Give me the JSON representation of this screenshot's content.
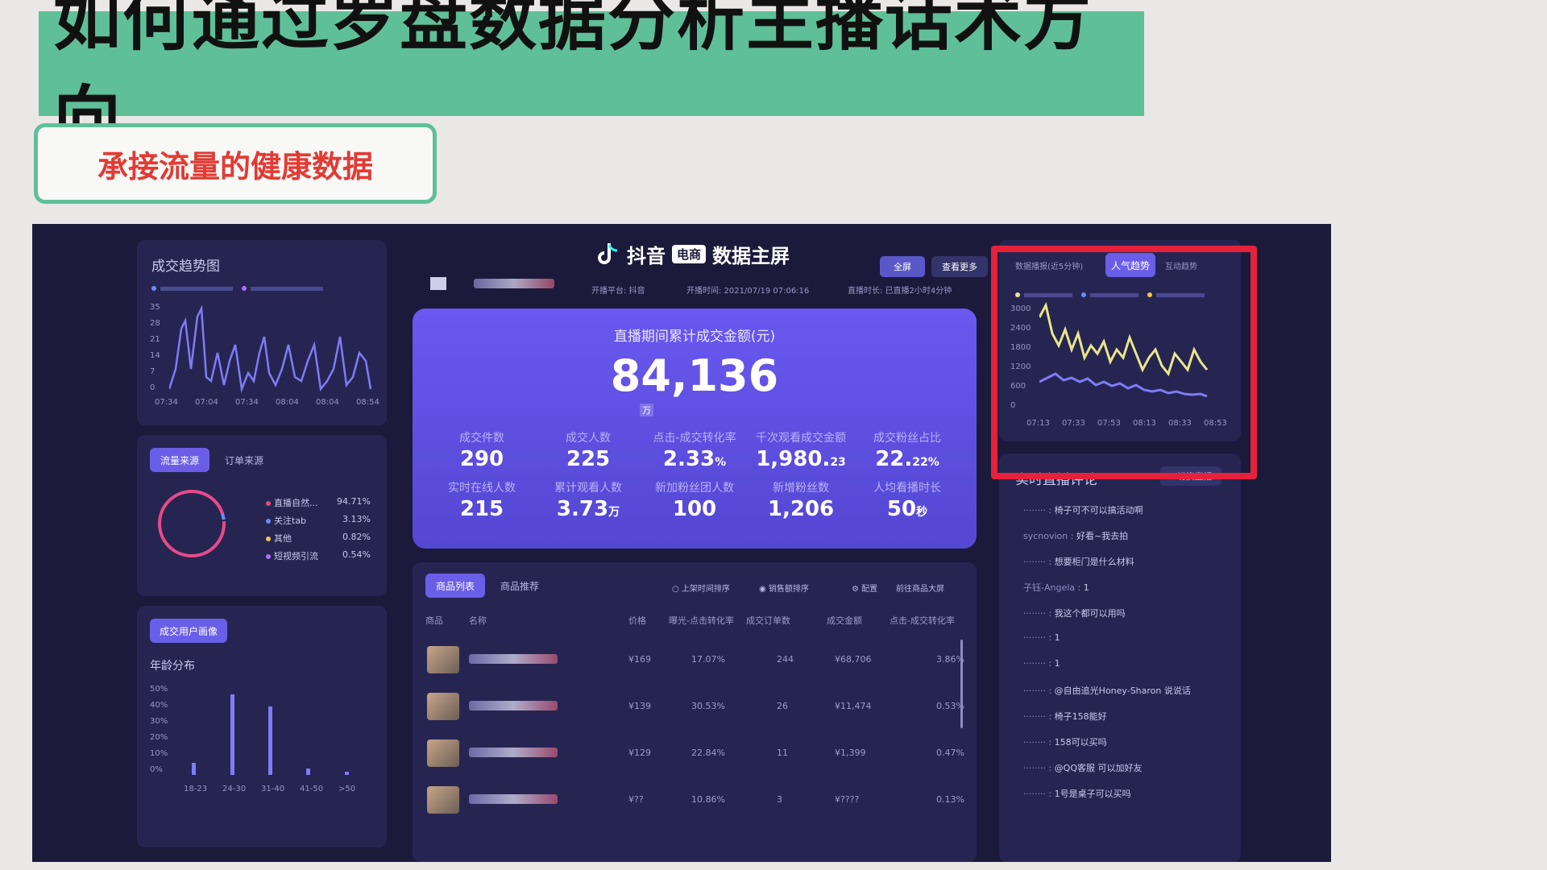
{
  "slide": {
    "title": "如何通过罗盘数据分析主播话术方向",
    "subtitle": "承接流量的健康数据"
  },
  "colors": {
    "accent_green": "#5fbf99",
    "subtitle_red": "#e23b34",
    "highlight_red": "#e8213b",
    "kpi_purple": "#6a58f0"
  },
  "dashboard": {
    "brand": "抖音",
    "badge": "电商",
    "title": "数据主屏",
    "fullscreen_btn": "全屏",
    "more_btn": "查看更多",
    "platform": "开播平台: 抖音",
    "start_time": "开播时间: 2021/07/19 07:06:16",
    "duration": "直播时长: 已直播2小时4分钟"
  },
  "trend": {
    "title": "成交趋势图",
    "y_ticks": [
      "35",
      "28",
      "21",
      "14",
      "7",
      "0"
    ],
    "x_ticks": [
      "07:34",
      "07:04",
      "07:34",
      "08:04",
      "08:04",
      "08:54"
    ]
  },
  "traffic": {
    "tabs": [
      "流量来源",
      "订单来源"
    ],
    "items": [
      {
        "name": "直播自然...",
        "value": "94.71%"
      },
      {
        "name": "关注tab",
        "value": "3.13%"
      },
      {
        "name": "其他",
        "value": "0.82%"
      },
      {
        "name": "短视频引流",
        "value": "0.54%"
      }
    ]
  },
  "age": {
    "tabs": [
      "成交用户画像"
    ],
    "title": "年龄分布",
    "y_ticks": [
      "50%",
      "40%",
      "30%",
      "20%",
      "10%",
      "0%"
    ],
    "x_ticks": [
      "18-23",
      "24-30",
      "31-40",
      "41-50",
      ">50"
    ]
  },
  "kpi": {
    "head": "直播期间累计成交金额(元)",
    "total": "84,136",
    "unit": "万",
    "items": [
      {
        "label": "成交件数",
        "value": "290",
        "suffix": ""
      },
      {
        "label": "成交人数",
        "value": "225",
        "suffix": ""
      },
      {
        "label": "点击-成交转化率",
        "value": "2.33",
        "suffix": "%"
      },
      {
        "label": "千次观看成交金额",
        "value": "1,980.",
        "suffix": "23"
      },
      {
        "label": "成交粉丝占比",
        "value": "22.",
        "suffix": "22%"
      },
      {
        "label": "实时在线人数",
        "value": "215",
        "suffix": ""
      },
      {
        "label": "累计观看人数",
        "value": "3.73",
        "suffix": "万"
      },
      {
        "label": "新加粉丝团人数",
        "value": "100",
        "suffix": ""
      },
      {
        "label": "新增粉丝数",
        "value": "1,206",
        "suffix": ""
      },
      {
        "label": "人均看播时长",
        "value": "50",
        "suffix": "秒"
      }
    ]
  },
  "products": {
    "tabs": [
      "商品列表",
      "商品推荐"
    ],
    "sort_options": [
      "上架时间排序",
      "销售额排序"
    ],
    "buttons": [
      "配置",
      "前往商品大屏"
    ],
    "columns": [
      "商品",
      "名称",
      "价格",
      "曝光-点击转化率",
      "成交订单数",
      "成交金额",
      "点击-成交转化率"
    ],
    "rows": [
      {
        "name": "",
        "price": "¥169",
        "ctr": "17.07%",
        "orders": "244",
        "amount": "¥68,706",
        "cvr": "3.86%"
      },
      {
        "name": "",
        "price": "¥139",
        "ctr": "30.53%",
        "orders": "26",
        "amount": "¥11,474",
        "cvr": "0.53%"
      },
      {
        "name": "",
        "price": "¥129",
        "ctr": "22.84%",
        "orders": "11",
        "amount": "¥1,399",
        "cvr": "0.47%"
      },
      {
        "name": "",
        "price": "¥??",
        "ctr": "10.86%",
        "orders": "3",
        "amount": "¥????",
        "cvr": "0.13%"
      }
    ]
  },
  "popularity": {
    "tabs": [
      "数据播报(近5分钟)",
      "人气趋势",
      "互动趋势"
    ],
    "y_ticks": [
      "3000",
      "2400",
      "1800",
      "1200",
      "600",
      "0"
    ],
    "x_ticks": [
      "07:13",
      "07:33",
      "07:53",
      "08:13",
      "08:33",
      "08:53"
    ]
  },
  "comments": {
    "title": "实时直播评论",
    "button": "切换直播",
    "items": [
      {
        "user": "",
        "text": "椅子可不可以搞活动啊"
      },
      {
        "user": "sycnovion",
        "text": "好看~我去拍"
      },
      {
        "user": "",
        "text": "想要柜门是什么材料"
      },
      {
        "user": "子钰-Angela",
        "text": "1"
      },
      {
        "user": "",
        "text": "我这个都可以用吗"
      },
      {
        "user": "",
        "text": "1"
      },
      {
        "user": "",
        "text": "1"
      },
      {
        "user": "",
        "text": "@自由追光Honey-Sharon 说说话"
      },
      {
        "user": "",
        "text": "椅子158能好"
      },
      {
        "user": "",
        "text": "158可以买吗"
      },
      {
        "user": "",
        "text": "@QQ客服 可以加好友"
      },
      {
        "user": "",
        "text": "1号是桌子可以买吗"
      }
    ]
  }
}
